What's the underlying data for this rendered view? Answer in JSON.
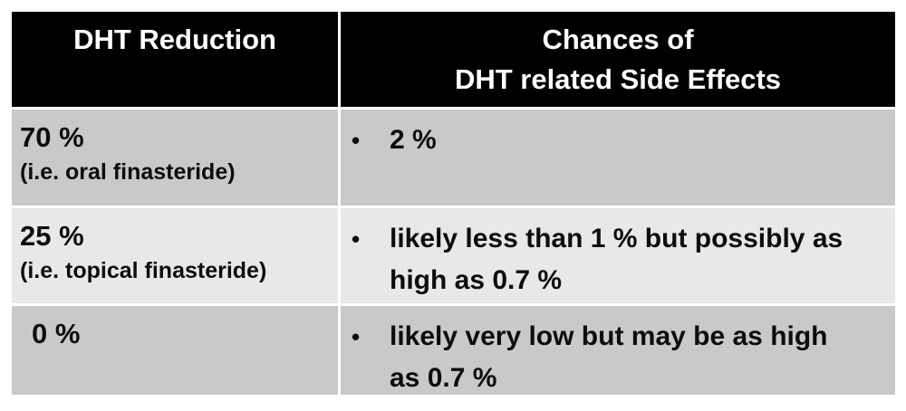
{
  "chart_data": {
    "type": "table",
    "columns": [
      "DHT Reduction",
      "Chances of DHT related Side Effects"
    ],
    "rows": [
      [
        "70 % (i.e. oral finasteride)",
        "2 %"
      ],
      [
        "25 % (i.e. topical finasteride)",
        "likely less than 1 % but possibly as high as 0.7 %"
      ],
      [
        "0 %",
        "likely very low but may be as high as 0.7 %"
      ]
    ]
  },
  "table": {
    "bullet_glyph": "•",
    "header": {
      "col1": "DHT Reduction",
      "col2_line1": "Chances of",
      "col2_line2": "DHT related Side Effects"
    },
    "rows": [
      {
        "reduction": "70 %",
        "note": "(i.e. oral finasteride)",
        "chance": "2 %",
        "chance_lines": [
          "2 %"
        ]
      },
      {
        "reduction": "25 %",
        "note": "(i.e. topical finasteride)",
        "chance": "likely less than 1 % but possibly as high as 0.7 %",
        "chance_lines": [
          "likely less than 1 % but possibly as",
          "high as 0.7 %"
        ]
      },
      {
        "reduction": "0 %",
        "note": "",
        "chance": "likely very low but may be as high as 0.7 %",
        "chance_lines": [
          "likely very low but may be as high",
          "as 0.7 %"
        ]
      }
    ],
    "colors": {
      "header_bg": "#000000",
      "header_text": "#ffffff",
      "row_shade_dark": "#c9c9c9",
      "row_shade_light": "#e8e8e8",
      "grid_line": "#ffffff",
      "body_text": "#0d0d0d",
      "page_bg": "#ffffff"
    }
  }
}
